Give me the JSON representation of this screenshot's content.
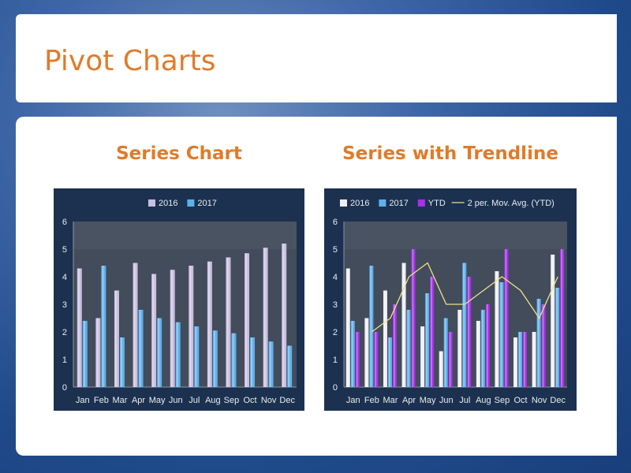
{
  "slide": {
    "title": "Pivot Charts"
  },
  "left_heading": "Series Chart",
  "right_heading": "Series with Trendline",
  "colors": {
    "accent_text": "#e07b2a",
    "chart_background": "#1c3150",
    "plot_background": "#4a5362",
    "series_2016": "#c9bfe0",
    "series_2017": "#5fb0ea",
    "series_2016_right": "#eeeef4",
    "series_ytd": "#a432e8",
    "moving_avg": "#f0e08a"
  },
  "chart_data": [
    {
      "type": "bar",
      "categories": [
        "Jan",
        "Feb",
        "Mar",
        "Apr",
        "May",
        "Jun",
        "Jul",
        "Aug",
        "Sep",
        "Oct",
        "Nov",
        "Dec"
      ],
      "series": [
        {
          "name": "2016",
          "values": [
            4.3,
            2.5,
            3.5,
            4.5,
            4.1,
            4.25,
            4.4,
            4.55,
            4.7,
            4.85,
            5.05,
            5.2
          ]
        },
        {
          "name": "2017",
          "values": [
            2.4,
            4.4,
            1.8,
            2.8,
            2.5,
            2.35,
            2.2,
            2.05,
            1.95,
            1.8,
            1.65,
            1.5
          ]
        }
      ],
      "yticks": [
        "0",
        "1",
        "2",
        "3",
        "4",
        "5",
        "6"
      ],
      "ylim": [
        0,
        6
      ],
      "legend": "top",
      "grid": false
    },
    {
      "type": "bar",
      "categories": [
        "Jan",
        "Feb",
        "Mar",
        "Apr",
        "May",
        "Jun",
        "Jul",
        "Aug",
        "Sep",
        "Oct",
        "Nov",
        "Dec"
      ],
      "series": [
        {
          "name": "2016",
          "values": [
            4.3,
            2.5,
            3.5,
            4.5,
            2.2,
            1.3,
            2.8,
            2.4,
            4.2,
            1.8,
            2.0,
            4.8
          ]
        },
        {
          "name": "2017",
          "values": [
            2.4,
            4.4,
            1.8,
            2.8,
            3.4,
            2.5,
            4.5,
            2.8,
            3.8,
            2.0,
            3.2,
            3.6
          ]
        },
        {
          "name": "YTD",
          "values": [
            2.0,
            2.0,
            3.0,
            5.0,
            4.0,
            2.0,
            4.0,
            3.0,
            5.0,
            2.0,
            3.0,
            5.0
          ]
        }
      ],
      "trendline": {
        "name": "2 per. Mov. Avg. (YTD)",
        "type": "line",
        "values": [
          null,
          2.0,
          2.5,
          4.0,
          4.5,
          3.0,
          3.0,
          3.5,
          4.0,
          3.5,
          2.5,
          4.0
        ]
      },
      "yticks": [
        "0",
        "1",
        "2",
        "3",
        "4",
        "5",
        "6"
      ],
      "ylim": [
        0,
        6
      ],
      "legend": "top",
      "grid": false
    }
  ]
}
